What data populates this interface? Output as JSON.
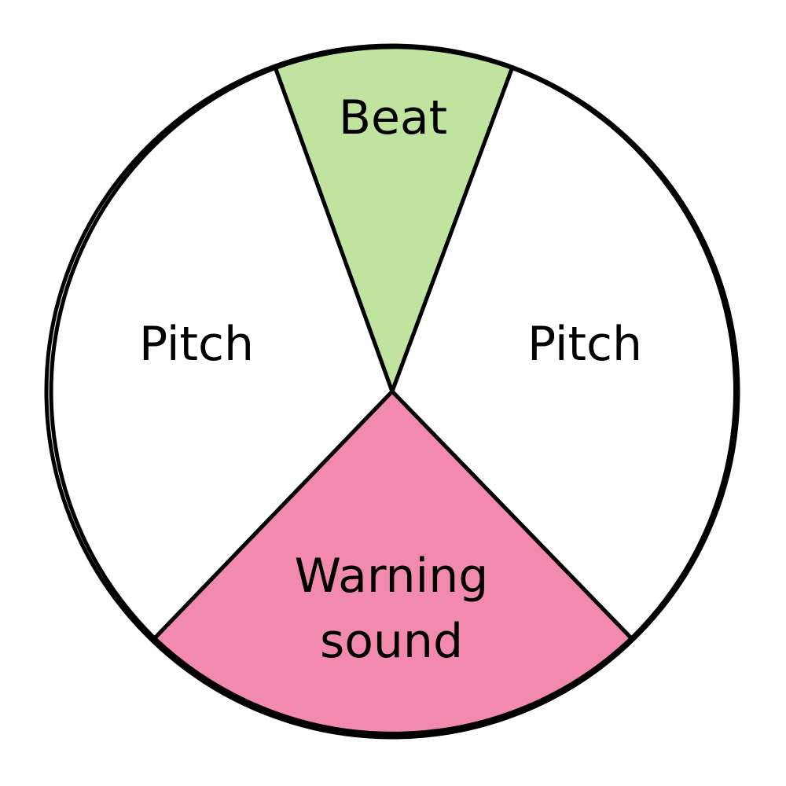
{
  "spinner": {
    "sectors": [
      {
        "label": "Pitch",
        "color": "#ffffff"
      },
      {
        "label": "Beat",
        "color": "#c1e3a0"
      },
      {
        "label": "Pitch",
        "color": "#ffffff"
      },
      {
        "label_line_1": "Warning",
        "label_line_2": "sound",
        "color": "#f289af"
      }
    ]
  }
}
